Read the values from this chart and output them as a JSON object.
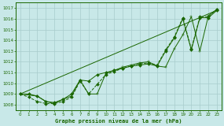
{
  "bg_color": "#c8e8e8",
  "grid_color": "#a8cccc",
  "line_color": "#1a6600",
  "text_color": "#1a6600",
  "xlabel": "Graphe pression niveau de la mer (hPa)",
  "xlim": [
    -0.5,
    23.5
  ],
  "ylim": [
    1007.5,
    1017.5
  ],
  "yticks": [
    1008,
    1009,
    1010,
    1011,
    1012,
    1013,
    1014,
    1015,
    1016,
    1017
  ],
  "xticks": [
    0,
    1,
    2,
    3,
    4,
    5,
    6,
    7,
    8,
    9,
    10,
    11,
    12,
    13,
    14,
    15,
    16,
    17,
    18,
    19,
    20,
    21,
    22,
    23
  ],
  "series": [
    {
      "x": [
        0,
        1,
        2,
        3,
        4,
        5,
        6,
        7,
        8,
        9,
        10,
        11,
        12,
        13,
        14,
        15,
        16,
        17,
        18,
        19,
        20,
        21,
        22,
        23
      ],
      "y": [
        1009.0,
        1009.0,
        1008.8,
        1008.3,
        1008.2,
        1008.5,
        1009.0,
        1010.3,
        1010.2,
        1010.8,
        1011.0,
        1011.2,
        1011.4,
        1011.6,
        1011.7,
        1011.8,
        1011.6,
        1013.0,
        1014.2,
        1016.0,
        1013.1,
        1016.1,
        1016.1,
        1016.8
      ],
      "style": "-",
      "marker": "D",
      "markersize": 2.0
    },
    {
      "x": [
        0,
        1,
        2,
        3,
        4,
        5,
        6,
        7,
        8,
        9,
        10,
        11,
        12,
        13,
        14,
        15,
        16,
        17,
        18,
        19,
        20,
        21,
        22,
        23
      ],
      "y": [
        1009.0,
        1008.7,
        1008.3,
        1008.1,
        1008.1,
        1008.3,
        1008.7,
        1010.2,
        1009.0,
        1009.9,
        1010.8,
        1011.1,
        1011.4,
        1011.6,
        1011.8,
        1011.9,
        1011.7,
        1013.1,
        1014.3,
        1016.1,
        1013.2,
        1016.2,
        1016.2,
        1016.9
      ],
      "style": "--",
      "marker": "D",
      "markersize": 2.0
    },
    {
      "x": [
        0,
        2,
        3,
        4,
        5,
        6,
        7,
        8,
        9,
        10,
        11,
        12,
        13,
        14,
        15,
        16,
        17,
        18,
        19,
        20,
        21,
        22,
        23
      ],
      "y": [
        1009.0,
        1008.8,
        1008.3,
        1008.1,
        1008.5,
        1008.8,
        1010.3,
        1009.0,
        1009.0,
        1010.9,
        1011.2,
        1011.5,
        1011.7,
        1011.9,
        1012.0,
        1011.6,
        1011.5,
        1013.2,
        1014.5,
        1016.2,
        1013.0,
        1016.3,
        1016.9
      ],
      "style": "-",
      "marker": "+",
      "markersize": 3.5
    },
    {
      "x": [
        0,
        23
      ],
      "y": [
        1009.0,
        1016.8
      ],
      "style": "-",
      "marker": "None",
      "markersize": 0
    }
  ]
}
